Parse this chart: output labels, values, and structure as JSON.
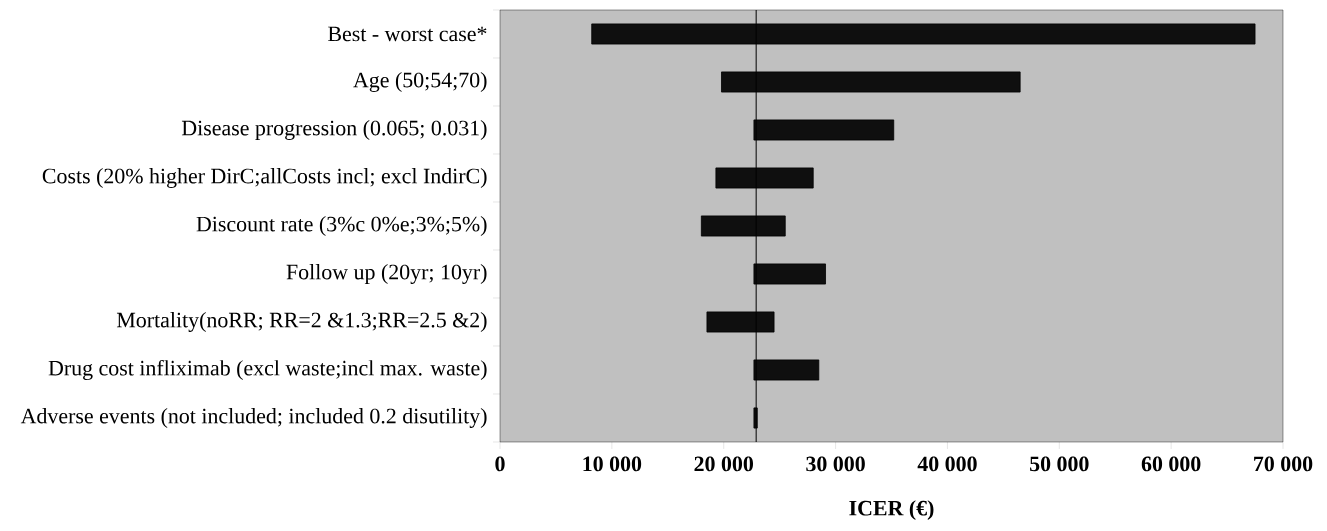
{
  "chart_data": {
    "type": "bar",
    "orientation": "horizontal",
    "xlabel": "ICER (€)",
    "categories": [
      "Best - worst case*",
      "Age (50;54;70)",
      "Disease progression (0.065; 0.031)",
      "Costs (20% higher DirC;allCosts incl; excl IndirC)",
      "Discount rate (3%c 0%e;3%;5%)",
      "Follow up (20yr; 10yr)",
      "Mortality(noRR; RR=2 &1.3;RR=2.5 &2)",
      "Drug cost infliximab (excl waste;incl max. waste)",
      "Adverse events (not included; included 0.2 disutility)"
    ],
    "base": [
      8200,
      19800,
      22700,
      19300,
      18000,
      22700,
      18500,
      22700,
      22700
    ],
    "values": [
      59300,
      26700,
      12500,
      8700,
      7500,
      6400,
      6000,
      5800,
      300
    ],
    "color": "#0f0f0f",
    "xlim": [
      0,
      70000
    ],
    "xticks": [
      0,
      {
        "value": 10000,
        "label": "10 000"
      },
      {
        "value": 20000,
        "label": "20 000"
      },
      {
        "value": 30000,
        "label": "30 000"
      },
      {
        "value": 40000,
        "label": "40 000"
      },
      {
        "value": 50000,
        "label": "50 000"
      },
      {
        "value": 60000,
        "label": "60 000"
      },
      {
        "value": 70000,
        "label": "70 000"
      }
    ],
    "ref_lines": [
      {
        "axis": "x",
        "value": 22900,
        "color": "#000000",
        "line_style": "solid"
      }
    ],
    "grid": false
  }
}
